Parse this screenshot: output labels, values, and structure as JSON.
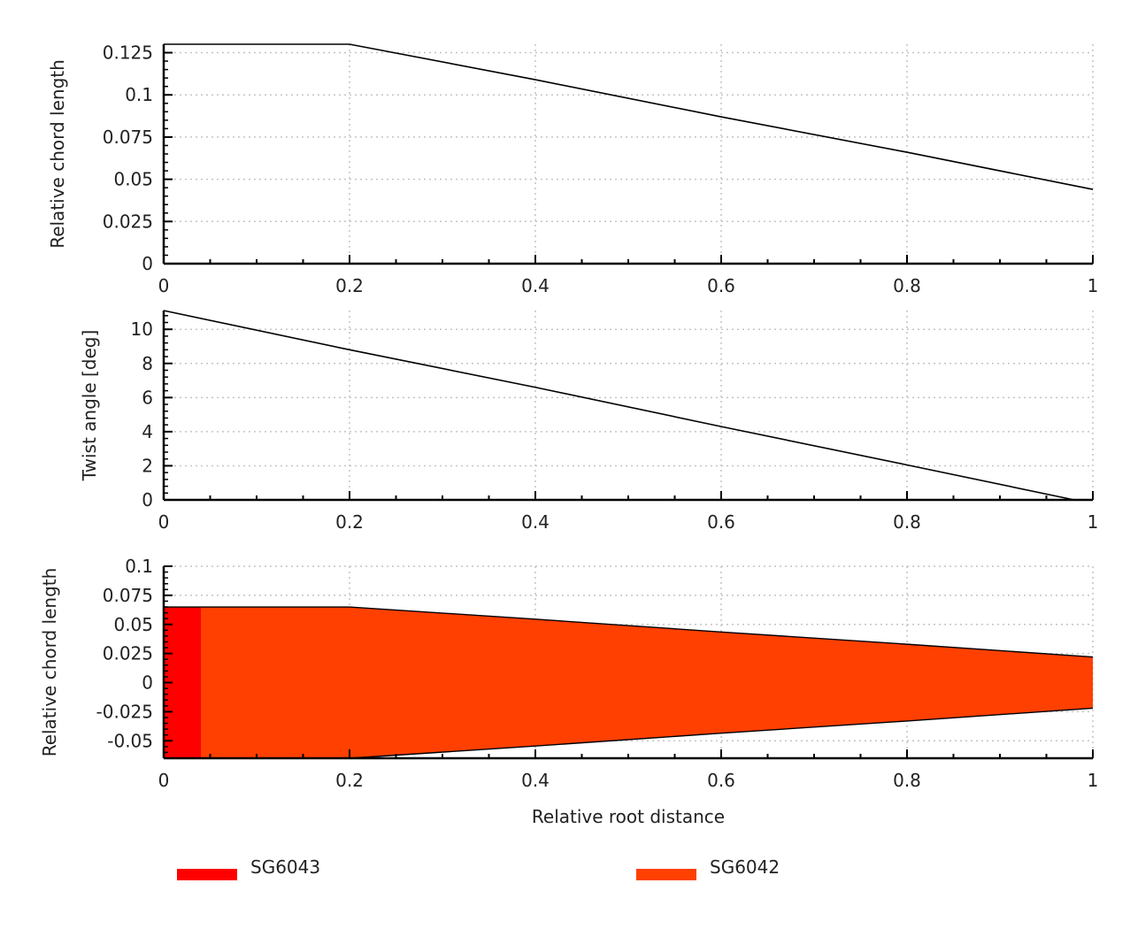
{
  "chart_data": [
    {
      "type": "line",
      "xlabel": "",
      "ylabel": "Relative chord length",
      "xlim": [
        0,
        1
      ],
      "ylim": [
        0,
        0.13
      ],
      "xticks": [
        0,
        0.2,
        0.4,
        0.6,
        0.8,
        1
      ],
      "xtick_labels": [
        "0",
        "0.2",
        "0.4",
        "0.6",
        "0.8",
        "1"
      ],
      "yticks": [
        0,
        0.025,
        0.05,
        0.075,
        0.1,
        0.125
      ],
      "ytick_labels": [
        "0",
        "0.025",
        "0.05",
        "0.075",
        "0.1",
        "0.125"
      ],
      "grid": true,
      "series": [
        {
          "x": [
            0,
            0.2,
            0.4,
            0.6,
            0.8,
            1
          ],
          "y": [
            0.13,
            0.13,
            0.109,
            0.087,
            0.066,
            0.044
          ],
          "color": "#000000"
        }
      ]
    },
    {
      "type": "line",
      "xlabel": "",
      "ylabel": "Twist angle [deg]",
      "xlim": [
        0,
        1
      ],
      "ylim": [
        0,
        11.1
      ],
      "xticks": [
        0,
        0.2,
        0.4,
        0.6,
        0.8,
        1
      ],
      "xtick_labels": [
        "0",
        "0.2",
        "0.4",
        "0.6",
        "0.8",
        "1"
      ],
      "yticks": [
        0,
        2,
        4,
        6,
        8,
        10
      ],
      "ytick_labels": [
        "0",
        "2",
        "4",
        "6",
        "8",
        "10"
      ],
      "grid": true,
      "series": [
        {
          "x": [
            0,
            0.2,
            0.4,
            0.6,
            0.8,
            0.98
          ],
          "y": [
            11.1,
            8.8,
            6.6,
            4.3,
            2.05,
            0
          ],
          "color": "#000000"
        }
      ]
    },
    {
      "type": "area",
      "xlabel": "Relative root distance",
      "ylabel": "Relative chord length",
      "xlim": [
        0,
        1
      ],
      "ylim": [
        -0.065,
        0.1
      ],
      "xticks": [
        0,
        0.2,
        0.4,
        0.6,
        0.8,
        1
      ],
      "xtick_labels": [
        "0",
        "0.2",
        "0.4",
        "0.6",
        "0.8",
        "1"
      ],
      "yticks": [
        -0.05,
        -0.025,
        0,
        0.025,
        0.05,
        0.075,
        0.1
      ],
      "ytick_labels": [
        "-0.05",
        "-0.025",
        "0",
        "0.025",
        "0.05",
        "0.075",
        "0.1"
      ],
      "grid": true,
      "outline": {
        "x": [
          0,
          0.2,
          0.4,
          0.6,
          0.8,
          1
        ],
        "half_chord": [
          0.065,
          0.065,
          0.0545,
          0.0435,
          0.033,
          0.022
        ]
      },
      "sections": [
        {
          "name": "SG6043",
          "x_range": [
            0,
            0.04
          ],
          "color": "#ff0000"
        },
        {
          "name": "SG6042",
          "x_range": [
            0.04,
            1
          ],
          "color": "#ff4000"
        }
      ],
      "legend": {
        "placement": "bottom"
      }
    }
  ]
}
